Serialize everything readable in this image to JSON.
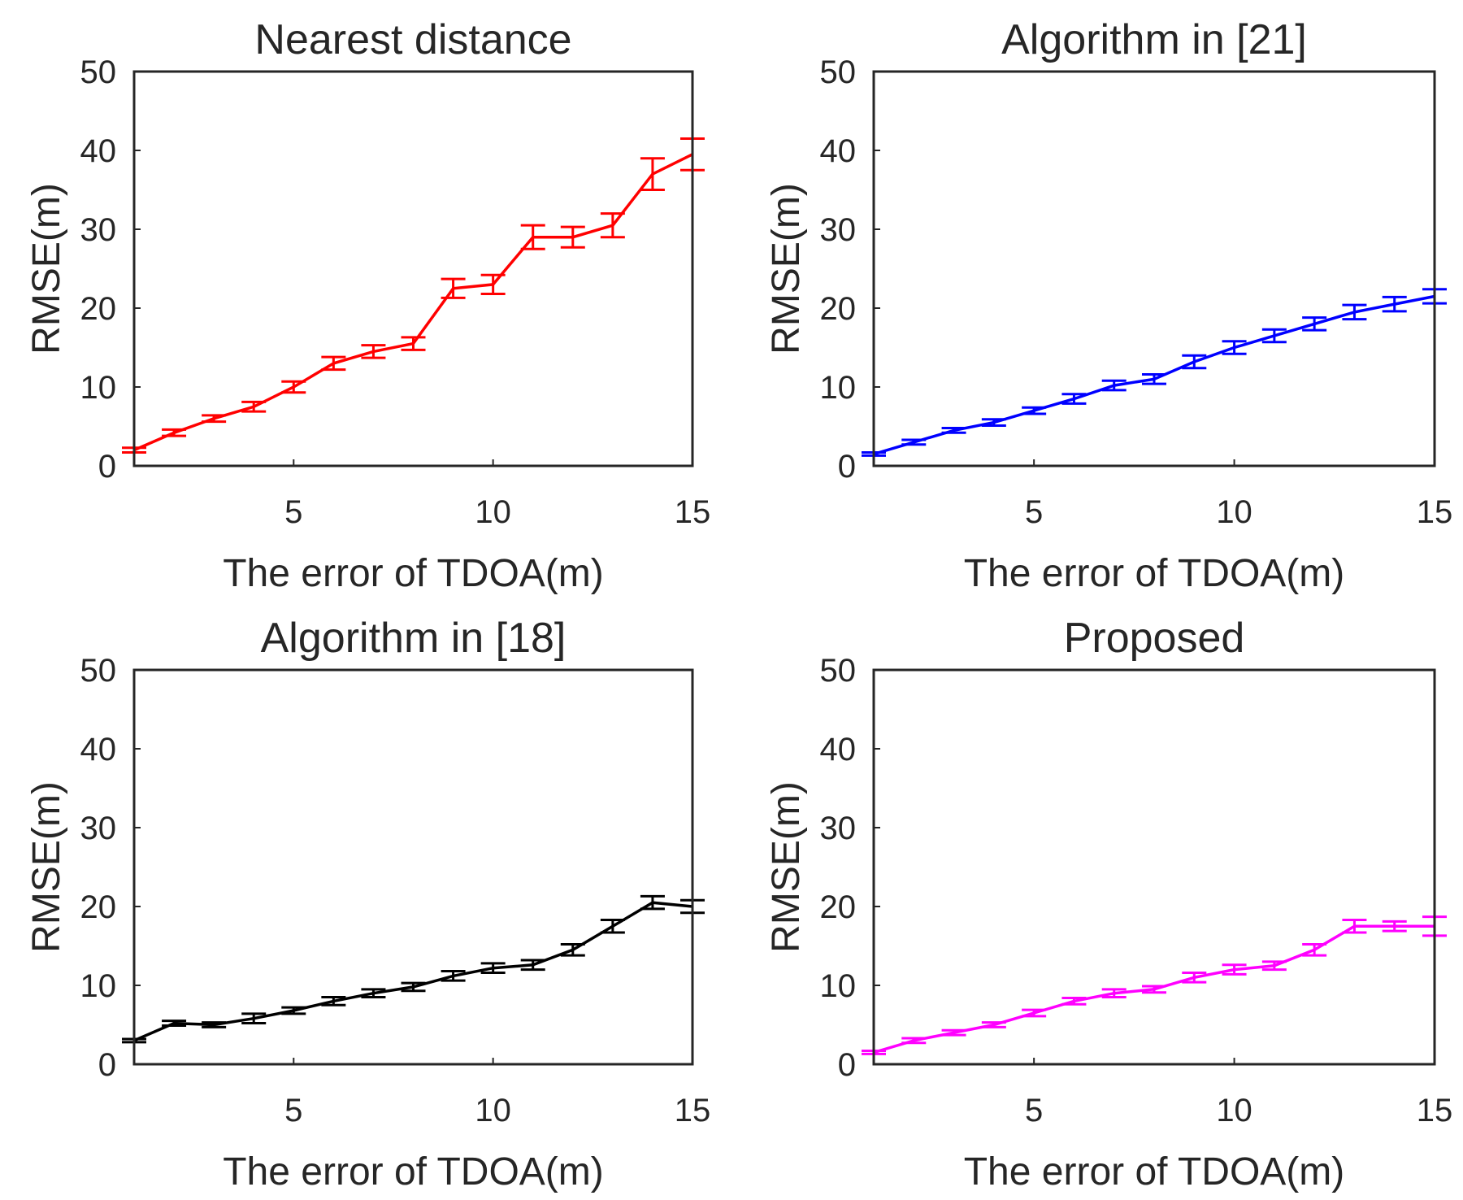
{
  "chart_data": [
    {
      "type": "line",
      "title": "Nearest distance",
      "xlabel": "The error of TDOA(m)",
      "ylabel": "RMSE(m)",
      "color": "#ff0000",
      "xlim": [
        1,
        15
      ],
      "ylim": [
        0,
        50
      ],
      "xticks": [
        5,
        10,
        15
      ],
      "yticks": [
        0,
        10,
        20,
        30,
        40,
        50
      ],
      "x": [
        1,
        2,
        3,
        4,
        5,
        6,
        7,
        8,
        9,
        10,
        11,
        12,
        13,
        14,
        15
      ],
      "y": [
        2.0,
        4.2,
        6.0,
        7.5,
        10.0,
        13.0,
        14.5,
        15.5,
        22.5,
        23.0,
        29.0,
        29.0,
        30.5,
        37.0,
        39.5
      ],
      "err": [
        0.3,
        0.4,
        0.4,
        0.6,
        0.7,
        0.8,
        0.8,
        0.8,
        1.2,
        1.2,
        1.5,
        1.3,
        1.5,
        2.0,
        2.0
      ]
    },
    {
      "type": "line",
      "title": "Algorithm in [21]",
      "xlabel": "The error of TDOA(m)",
      "ylabel": "RMSE(m)",
      "color": "#0000ff",
      "xlim": [
        1,
        15
      ],
      "ylim": [
        0,
        50
      ],
      "xticks": [
        5,
        10,
        15
      ],
      "yticks": [
        0,
        10,
        20,
        30,
        40,
        50
      ],
      "x": [
        1,
        2,
        3,
        4,
        5,
        6,
        7,
        8,
        9,
        10,
        11,
        12,
        13,
        14,
        15
      ],
      "y": [
        1.5,
        3.0,
        4.5,
        5.5,
        7.0,
        8.5,
        10.2,
        11.0,
        13.2,
        15.0,
        16.5,
        18.0,
        19.5,
        20.5,
        21.5
      ],
      "err": [
        0.2,
        0.3,
        0.3,
        0.4,
        0.4,
        0.6,
        0.6,
        0.6,
        0.8,
        0.8,
        0.8,
        0.8,
        0.9,
        0.9,
        0.9
      ]
    },
    {
      "type": "line",
      "title": "Algorithm in [18]",
      "xlabel": "The error of TDOA(m)",
      "ylabel": "RMSE(m)",
      "color": "#000000",
      "xlim": [
        1,
        15
      ],
      "ylim": [
        0,
        50
      ],
      "xticks": [
        5,
        10,
        15
      ],
      "yticks": [
        0,
        10,
        20,
        30,
        40,
        50
      ],
      "x": [
        1,
        2,
        3,
        4,
        5,
        6,
        7,
        8,
        9,
        10,
        11,
        12,
        13,
        14,
        15
      ],
      "y": [
        3.0,
        5.2,
        5.0,
        5.8,
        6.8,
        8.0,
        9.0,
        9.8,
        11.2,
        12.2,
        12.6,
        14.5,
        17.5,
        20.5,
        20.0
      ],
      "err": [
        0.2,
        0.3,
        0.3,
        0.6,
        0.4,
        0.5,
        0.5,
        0.5,
        0.6,
        0.6,
        0.6,
        0.7,
        0.8,
        0.8,
        0.8
      ]
    },
    {
      "type": "line",
      "title": "Proposed",
      "xlabel": "The error of TDOA(m)",
      "ylabel": "RMSE(m)",
      "color": "#ff00ff",
      "xlim": [
        1,
        15
      ],
      "ylim": [
        0,
        50
      ],
      "xticks": [
        5,
        10,
        15
      ],
      "yticks": [
        0,
        10,
        20,
        30,
        40,
        50
      ],
      "x": [
        1,
        2,
        3,
        4,
        5,
        6,
        7,
        8,
        9,
        10,
        11,
        12,
        13,
        14,
        15
      ],
      "y": [
        1.5,
        3.0,
        4.0,
        5.0,
        6.5,
        8.0,
        9.0,
        9.5,
        11.0,
        12.0,
        12.5,
        14.5,
        17.5,
        17.5,
        17.5
      ],
      "err": [
        0.2,
        0.3,
        0.3,
        0.3,
        0.4,
        0.4,
        0.5,
        0.4,
        0.6,
        0.6,
        0.5,
        0.7,
        0.8,
        0.6,
        1.2
      ]
    }
  ]
}
